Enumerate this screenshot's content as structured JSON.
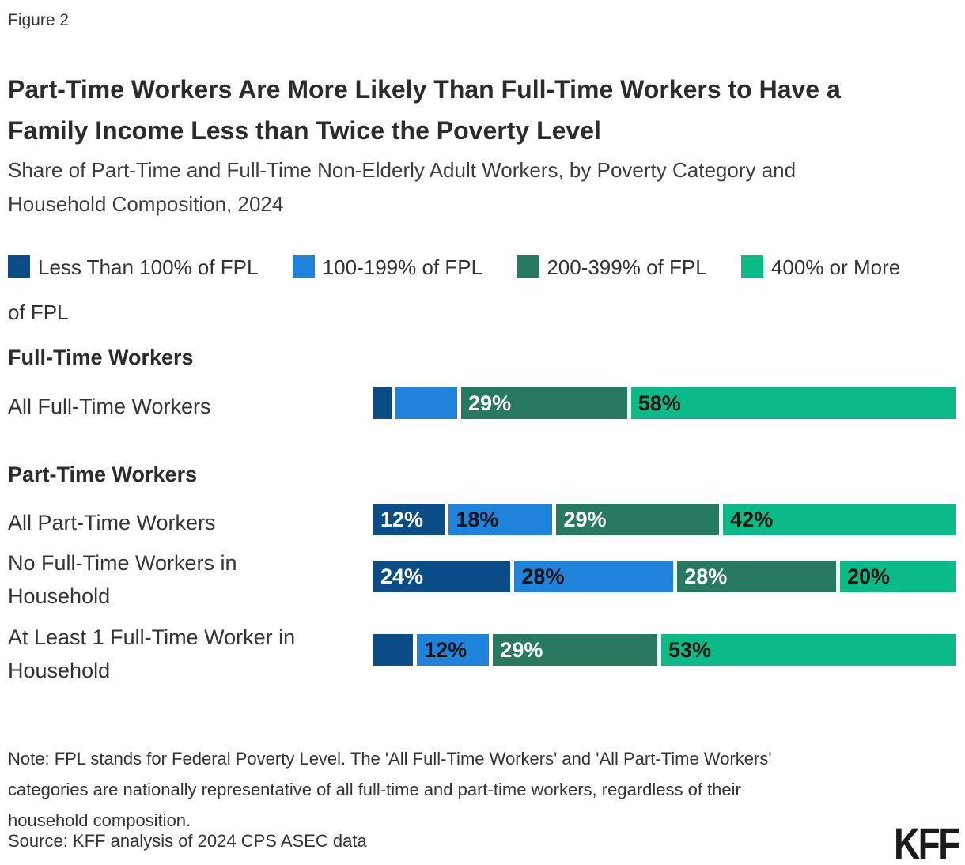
{
  "figure_label": "Figure 2",
  "title": "Part-Time Workers Are More Likely Than Full-Time Workers to Have a Family Income Less than Twice the Poverty Level",
  "subtitle": "Share of Part-Time and Full-Time Non-Elderly Adult Workers, by Poverty Category and Household Composition, 2024",
  "legend": {
    "items": [
      {
        "label": "Less Than 100% of FPL"
      },
      {
        "label": "100-199% of FPL"
      },
      {
        "label": "200-399% of FPL"
      },
      {
        "label": "400% or More of FPL"
      }
    ]
  },
  "chart_data": {
    "type": "bar",
    "orientation": "horizontal",
    "stacked": true,
    "unit": "percent of workers",
    "x_range": [
      0,
      100
    ],
    "grid": false,
    "legend_position": "top",
    "series_names": [
      "Less Than 100% of FPL",
      "100-199% of FPL",
      "200-399% of FPL",
      "400% or More of FPL"
    ],
    "series_colors": [
      "#0B4E87",
      "#1F83DB",
      "#287961",
      "#0ABB87"
    ],
    "label_text_colors": [
      "#ffffff",
      "#111111",
      "#ffffff",
      "#111111"
    ],
    "sections": [
      {
        "heading": "Full-Time Workers",
        "rows": [
          {
            "label": "All Full-Time Workers",
            "values": [
              2,
              10,
              29,
              58
            ],
            "value_labels": [
              "",
              "",
              "29%",
              "58%"
            ]
          }
        ]
      },
      {
        "heading": "Part-Time Workers",
        "rows": [
          {
            "label": "All Part-Time Workers",
            "values": [
              12,
              18,
              29,
              42
            ],
            "value_labels": [
              "12%",
              "18%",
              "29%",
              "42%"
            ]
          },
          {
            "label": "No Full-Time Workers in Household",
            "values": [
              24,
              28,
              28,
              20
            ],
            "value_labels": [
              "24%",
              "28%",
              "28%",
              "20%"
            ]
          },
          {
            "label": "At Least 1 Full-Time Worker in Household",
            "values": [
              6,
              12,
              29,
              53
            ],
            "value_labels": [
              "",
              "12%",
              "29%",
              "53%"
            ]
          }
        ]
      }
    ]
  },
  "note": "Note: FPL stands for Federal Poverty Level. The 'All Full-Time Workers' and 'All Part-Time Workers' categories are nationally representative of all full-time and part-time workers, regardless of their household composition.",
  "source": "Source: KFF analysis of 2024 CPS ASEC data",
  "logo": "KFF"
}
